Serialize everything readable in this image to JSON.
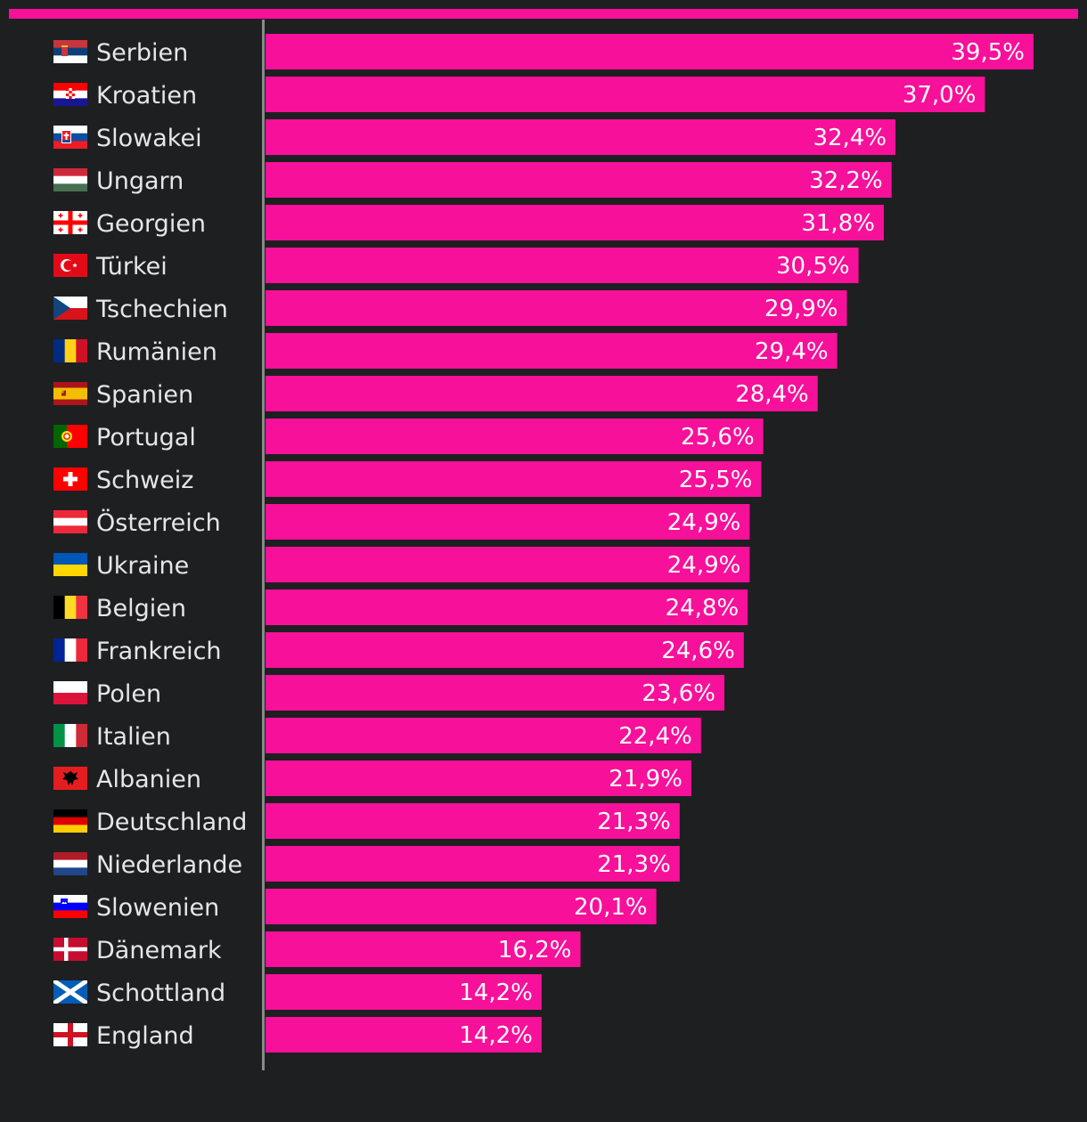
{
  "colors": {
    "accent": "#f7109a",
    "background": "#1e1f21",
    "axis": "#8a8a8a",
    "label_text": "#e6e6e6",
    "value_text": "#ffffff"
  },
  "chart_data": {
    "type": "bar",
    "orientation": "horizontal",
    "title": "",
    "xlabel": "",
    "ylabel": "",
    "xlim": [
      0,
      39.5
    ],
    "grid": false,
    "legend": "none",
    "value_suffix": "%",
    "decimal_separator": ",",
    "categories": [
      {
        "name": "Serbien",
        "flag": "serbia-flag-icon"
      },
      {
        "name": "Kroatien",
        "flag": "croatia-flag-icon"
      },
      {
        "name": "Slowakei",
        "flag": "slovakia-flag-icon"
      },
      {
        "name": "Ungarn",
        "flag": "hungary-flag-icon"
      },
      {
        "name": "Georgien",
        "flag": "georgia-flag-icon"
      },
      {
        "name": "Türkei",
        "flag": "turkey-flag-icon"
      },
      {
        "name": "Tschechien",
        "flag": "czechia-flag-icon"
      },
      {
        "name": "Rumänien",
        "flag": "romania-flag-icon"
      },
      {
        "name": "Spanien",
        "flag": "spain-flag-icon"
      },
      {
        "name": "Portugal",
        "flag": "portugal-flag-icon"
      },
      {
        "name": "Schweiz",
        "flag": "switzerland-flag-icon"
      },
      {
        "name": "Österreich",
        "flag": "austria-flag-icon"
      },
      {
        "name": "Ukraine",
        "flag": "ukraine-flag-icon"
      },
      {
        "name": "Belgien",
        "flag": "belgium-flag-icon"
      },
      {
        "name": "Frankreich",
        "flag": "france-flag-icon"
      },
      {
        "name": "Polen",
        "flag": "poland-flag-icon"
      },
      {
        "name": "Italien",
        "flag": "italy-flag-icon"
      },
      {
        "name": "Albanien",
        "flag": "albania-flag-icon"
      },
      {
        "name": "Deutschland",
        "flag": "germany-flag-icon"
      },
      {
        "name": "Niederlande",
        "flag": "netherlands-flag-icon"
      },
      {
        "name": "Slowenien",
        "flag": "slovenia-flag-icon"
      },
      {
        "name": "Dänemark",
        "flag": "denmark-flag-icon"
      },
      {
        "name": "Schottland",
        "flag": "scotland-flag-icon"
      },
      {
        "name": "England",
        "flag": "england-flag-icon"
      }
    ],
    "values": [
      39.5,
      37.0,
      32.4,
      32.2,
      31.8,
      30.5,
      29.9,
      29.4,
      28.4,
      25.6,
      25.5,
      24.9,
      24.9,
      24.8,
      24.6,
      23.6,
      22.4,
      21.9,
      21.3,
      21.3,
      20.1,
      16.2,
      14.2,
      14.2
    ]
  }
}
